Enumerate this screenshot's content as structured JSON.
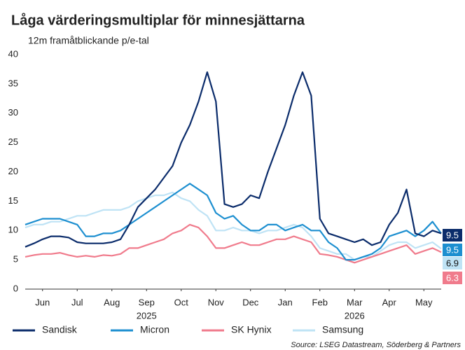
{
  "chart_data": {
    "type": "line",
    "title": "Låga värderingsmultiplar för minnesjättarna",
    "subtitle": "12m framåtblickande p/e-tal",
    "source": "Source: LSEG Datastream, Söderberg & Partners",
    "x": [
      0,
      0.25,
      0.5,
      0.75,
      1,
      1.25,
      1.5,
      1.75,
      2,
      2.25,
      2.5,
      2.75,
      3,
      3.25,
      3.5,
      3.75,
      4,
      4.25,
      4.5,
      4.75,
      5,
      5.25,
      5.5,
      5.75,
      6,
      6.25,
      6.5,
      6.75,
      7,
      7.25,
      7.5,
      7.75,
      8,
      8.25,
      8.5,
      8.75,
      9,
      9.25,
      9.5,
      9.75,
      10,
      10.25,
      10.5,
      10.75,
      11,
      11.25,
      11.5,
      11.75,
      12
    ],
    "xlim": [
      0,
      12
    ],
    "xticks": [
      {
        "value": 0.5,
        "label": "Jun"
      },
      {
        "value": 1.5,
        "label": "Jul"
      },
      {
        "value": 2.5,
        "label": "Aug"
      },
      {
        "value": 3.5,
        "label": "Sep"
      },
      {
        "value": 4.5,
        "label": "Oct"
      },
      {
        "value": 5.5,
        "label": "Nov"
      },
      {
        "value": 6.5,
        "label": "Dec"
      },
      {
        "value": 7.5,
        "label": "Jan"
      },
      {
        "value": 8.5,
        "label": "Feb"
      },
      {
        "value": 9.5,
        "label": "Mar"
      },
      {
        "value": 10.5,
        "label": "Apr"
      },
      {
        "value": 11.5,
        "label": "May"
      }
    ],
    "year_labels": [
      {
        "value": 3.5,
        "label": "2025"
      },
      {
        "value": 9.5,
        "label": "2026"
      }
    ],
    "ylim": [
      0,
      40
    ],
    "yticks": [
      0,
      5,
      10,
      15,
      20,
      25,
      30,
      35,
      40
    ],
    "grid": false,
    "series": [
      {
        "name": "Sandisk",
        "color": "#0b2c6b",
        "end_label": "9.5",
        "values": [
          7.2,
          7.8,
          8.5,
          9,
          9,
          8.8,
          8,
          7.8,
          7.8,
          7.8,
          8,
          8.5,
          11,
          14,
          15.5,
          17,
          19,
          21,
          25,
          28,
          32,
          37,
          32,
          14.5,
          14,
          14.5,
          16,
          15.5,
          20,
          24,
          28,
          33,
          37,
          33,
          12,
          9.5,
          9,
          8.5,
          8,
          8.5,
          7.5,
          8,
          11,
          13,
          17,
          9.5,
          9,
          10,
          9.5
        ]
      },
      {
        "name": "Micron",
        "color": "#1d8fd0",
        "end_label": "9.5",
        "values": [
          11,
          11.5,
          12,
          12,
          12,
          11.5,
          11,
          9,
          9,
          9.5,
          9.5,
          10,
          11,
          12,
          13,
          14,
          15,
          16,
          17,
          18,
          17,
          16,
          13,
          12,
          12.5,
          11,
          10,
          10,
          11,
          11,
          10,
          10.5,
          11,
          10,
          10,
          8,
          7,
          5,
          5,
          5.5,
          6,
          7,
          9,
          9.5,
          10,
          9,
          10,
          11.5,
          9.5
        ]
      },
      {
        "name": "SK Hynix",
        "color": "#f07b8c",
        "end_label": "6.3",
        "values": [
          5.5,
          5.8,
          6,
          6,
          6.2,
          5.8,
          5.5,
          5.7,
          5.5,
          5.8,
          5.7,
          6,
          7,
          7,
          7.5,
          8,
          8.5,
          9.5,
          10,
          11,
          10.5,
          9,
          7,
          7,
          7.5,
          8,
          7.5,
          7.5,
          8,
          8.5,
          8.5,
          9,
          8.5,
          8,
          6,
          5.8,
          5.5,
          5,
          4.5,
          5,
          5.5,
          6,
          6.5,
          7,
          7.5,
          6,
          6.5,
          7,
          6.3
        ]
      },
      {
        "name": "Samsung",
        "color": "#bfe3f5",
        "end_label": "6.9",
        "values": [
          10.5,
          11,
          11,
          11.5,
          11.5,
          12,
          12.5,
          12.5,
          13,
          13.5,
          13.5,
          13.5,
          14,
          15,
          15.5,
          16,
          16,
          16.5,
          15.5,
          15,
          13.5,
          12.5,
          10,
          10,
          10.5,
          10,
          10,
          9.5,
          10,
          10,
          10.5,
          11,
          10.5,
          9,
          7,
          6.5,
          6,
          6,
          5,
          5.5,
          5.5,
          6.5,
          7.5,
          8,
          8,
          7,
          7.5,
          8,
          6.9
        ]
      }
    ]
  }
}
